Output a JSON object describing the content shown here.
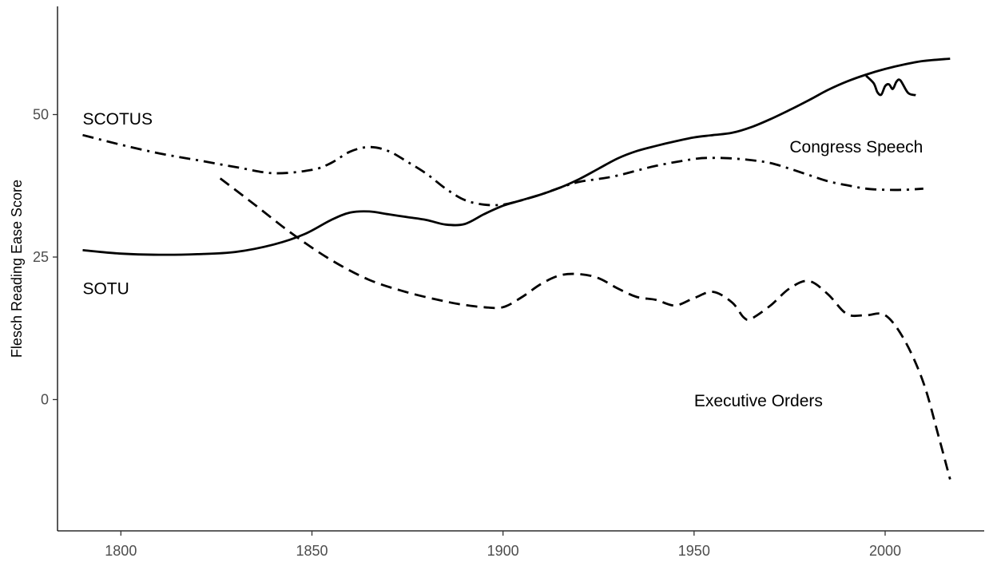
{
  "chart_data": {
    "type": "line",
    "title": "",
    "xlabel": "",
    "ylabel": "Flesch Reading Ease Score",
    "xlim": [
      1783,
      2023
    ],
    "ylim": [
      -20,
      70
    ],
    "x_ticks": [
      1800,
      1850,
      1900,
      1950,
      2000
    ],
    "x_tick_labels": [
      "1800",
      "1850",
      "1900",
      "1950",
      "2000"
    ],
    "y_ticks": [
      0,
      25,
      50
    ],
    "y_tick_labels": [
      "0",
      "25",
      "50"
    ],
    "grid": false,
    "legend": "none",
    "line_color": "#000000",
    "series": [
      {
        "name": "SOTU",
        "linestyle": "solid",
        "label_at": [
          1790,
          19.5
        ],
        "x": [
          1790,
          1800,
          1810,
          1820,
          1830,
          1840,
          1848,
          1855,
          1860,
          1865,
          1870,
          1875,
          1880,
          1885,
          1890,
          1895,
          1900,
          1905,
          1910,
          1915,
          1920,
          1925,
          1930,
          1935,
          1940,
          1945,
          1950,
          1955,
          1960,
          1965,
          1970,
          1975,
          1980,
          1985,
          1990,
          1995,
          2000,
          2005,
          2010,
          2017
        ],
        "y": [
          26.2,
          25.6,
          25.4,
          25.5,
          25.9,
          27.2,
          29.0,
          31.5,
          32.8,
          33.0,
          32.5,
          32.0,
          31.5,
          30.7,
          30.8,
          32.5,
          34.0,
          35.0,
          36.0,
          37.2,
          38.7,
          40.5,
          42.3,
          43.6,
          44.5,
          45.3,
          46.0,
          46.4,
          46.8,
          47.8,
          49.2,
          50.8,
          52.5,
          54.3,
          55.8,
          57.0,
          58.0,
          58.8,
          59.4,
          59.8
        ]
      },
      {
        "name": "SCOTUS",
        "linestyle": "dashdot",
        "label_at": [
          1790,
          49.2
        ],
        "x": [
          1790,
          1800,
          1810,
          1820,
          1830,
          1840,
          1850,
          1855,
          1860,
          1865,
          1870,
          1875,
          1880,
          1885,
          1890,
          1895,
          1900,
          1905,
          1910,
          1915,
          1920,
          1925,
          1930,
          1940,
          1950,
          1955,
          1960,
          1965,
          1970,
          1975,
          1980,
          1985,
          1990,
          1995,
          2000,
          2005,
          2010
        ],
        "y": [
          46.4,
          44.7,
          43.2,
          42.0,
          40.8,
          39.7,
          40.3,
          41.5,
          43.5,
          44.3,
          43.6,
          41.7,
          39.6,
          37.0,
          35.0,
          34.2,
          34.2,
          35.0,
          36.0,
          37.2,
          38.2,
          38.7,
          39.3,
          41.0,
          42.2,
          42.4,
          42.3,
          42.0,
          41.5,
          40.5,
          39.4,
          38.3,
          37.6,
          37.0,
          36.8,
          36.8,
          37.0
        ]
      },
      {
        "name": "Executive Orders",
        "linestyle": "dashed",
        "label_at": [
          1950,
          -0.2
        ],
        "x": [
          1826,
          1835,
          1845,
          1855,
          1865,
          1875,
          1885,
          1890,
          1895,
          1900,
          1905,
          1910,
          1915,
          1920,
          1925,
          1930,
          1935,
          1940,
          1945,
          1950,
          1955,
          1960,
          1963,
          1965,
          1970,
          1975,
          1980,
          1985,
          1990,
          1995,
          2000,
          2005,
          2010,
          2014,
          2017
        ],
        "y": [
          38.8,
          34.2,
          29.0,
          24.5,
          21.0,
          18.8,
          17.2,
          16.6,
          16.2,
          16.2,
          18.0,
          20.3,
          21.8,
          22.0,
          21.3,
          19.5,
          18.0,
          17.5,
          16.5,
          17.8,
          18.9,
          17.0,
          14.4,
          14.2,
          16.5,
          19.5,
          20.8,
          18.5,
          15.0,
          14.8,
          14.8,
          10.5,
          3.0,
          -6.5,
          -14.0
        ]
      },
      {
        "name": "Congress Speech",
        "linestyle": "solid",
        "label_at": [
          1975,
          44.3
        ],
        "x": [
          1995,
          1997,
          1998,
          1999,
          2000,
          2001,
          2002,
          2003,
          2004,
          2006,
          2008
        ],
        "y": [
          56.8,
          55.5,
          53.9,
          53.5,
          55.0,
          55.3,
          54.5,
          55.8,
          56.0,
          53.8,
          53.4
        ]
      }
    ]
  }
}
